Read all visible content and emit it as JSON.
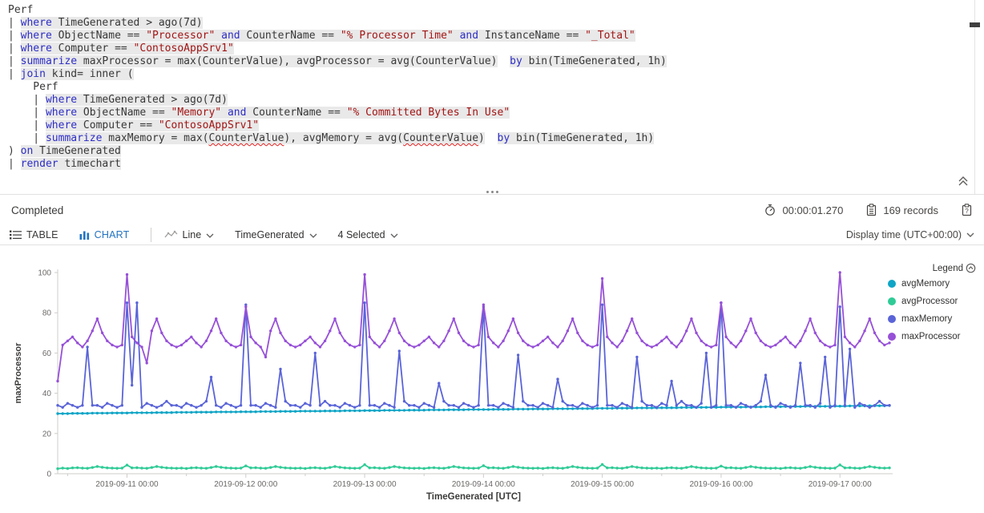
{
  "query": {
    "lines": [
      [
        {
          "t": "Perf",
          "c": "p"
        }
      ],
      [
        {
          "t": "| ",
          "c": "p"
        },
        {
          "t": "where",
          "c": "k",
          "h": 1
        },
        {
          "t": " TimeGenerated > ago(7d)",
          "c": "p",
          "h": 1
        }
      ],
      [
        {
          "t": "| ",
          "c": "p"
        },
        {
          "t": "where",
          "c": "k",
          "h": 1
        },
        {
          "t": " ObjectName == ",
          "c": "p",
          "h": 1
        },
        {
          "t": "\"Processor\"",
          "c": "s",
          "h": 1
        },
        {
          "t": " ",
          "c": "p",
          "h": 1
        },
        {
          "t": "and",
          "c": "k",
          "h": 1
        },
        {
          "t": " CounterName == ",
          "c": "p",
          "h": 1
        },
        {
          "t": "\"% Processor Time\"",
          "c": "s",
          "h": 1
        },
        {
          "t": " ",
          "c": "p",
          "h": 1
        },
        {
          "t": "and",
          "c": "k",
          "h": 1
        },
        {
          "t": " InstanceName == ",
          "c": "p",
          "h": 1
        },
        {
          "t": "\"_Total\"",
          "c": "s",
          "h": 1
        }
      ],
      [
        {
          "t": "| ",
          "c": "p"
        },
        {
          "t": "where",
          "c": "k",
          "h": 1
        },
        {
          "t": " Computer == ",
          "c": "p",
          "h": 1
        },
        {
          "t": "\"ContosoAppSrv1\"",
          "c": "s",
          "h": 1
        }
      ],
      [
        {
          "t": "| ",
          "c": "p"
        },
        {
          "t": "summarize",
          "c": "k",
          "h": 1
        },
        {
          "t": " maxProcessor = max(CounterValue), avgProcessor = avg(CounterValue)",
          "c": "p",
          "h": 1
        },
        {
          "t": "  ",
          "c": "p"
        },
        {
          "t": "by",
          "c": "k",
          "h": 1
        },
        {
          "t": " bin(TimeGenerated, 1h)",
          "c": "p",
          "h": 1
        }
      ],
      [
        {
          "t": "| ",
          "c": "p"
        },
        {
          "t": "join",
          "c": "k",
          "h": 1
        },
        {
          "t": " kind= inner (",
          "c": "p",
          "h": 1
        }
      ],
      [
        {
          "t": "    Perf",
          "c": "p"
        }
      ],
      [
        {
          "t": "    | ",
          "c": "p"
        },
        {
          "t": "where",
          "c": "k",
          "h": 1
        },
        {
          "t": " TimeGenerated > ago(7d)",
          "c": "p",
          "h": 1
        }
      ],
      [
        {
          "t": "    | ",
          "c": "p"
        },
        {
          "t": "where",
          "c": "k",
          "h": 1
        },
        {
          "t": " ObjectName == ",
          "c": "p",
          "h": 1
        },
        {
          "t": "\"Memory\"",
          "c": "s",
          "h": 1
        },
        {
          "t": " ",
          "c": "p",
          "h": 1
        },
        {
          "t": "and",
          "c": "k",
          "h": 1
        },
        {
          "t": " CounterName == ",
          "c": "p",
          "h": 1
        },
        {
          "t": "\"% Committed Bytes In Use\"",
          "c": "s",
          "h": 1
        }
      ],
      [
        {
          "t": "    | ",
          "c": "p"
        },
        {
          "t": "where",
          "c": "k",
          "h": 1
        },
        {
          "t": " Computer == ",
          "c": "p",
          "h": 1
        },
        {
          "t": "\"ContosoAppSrv1\"",
          "c": "s",
          "h": 1
        }
      ],
      [
        {
          "t": "    | ",
          "c": "p"
        },
        {
          "t": "summarize",
          "c": "k",
          "h": 1
        },
        {
          "t": " maxMemory = max(",
          "c": "p",
          "h": 1
        },
        {
          "t": "CounterValue",
          "c": "p",
          "h": 1,
          "u": 1
        },
        {
          "t": "), avgMemory = avg(",
          "c": "p",
          "h": 1
        },
        {
          "t": "CounterValue",
          "c": "p",
          "h": 1,
          "u": 1
        },
        {
          "t": ")",
          "c": "p",
          "h": 1
        },
        {
          "t": "  ",
          "c": "p"
        },
        {
          "t": "by",
          "c": "k",
          "h": 1
        },
        {
          "t": " bin(TimeGenerated, 1h)",
          "c": "p",
          "h": 1
        }
      ],
      [
        {
          "t": ") ",
          "c": "p"
        },
        {
          "t": "on",
          "c": "k",
          "h": 1
        },
        {
          "t": " TimeGenerated",
          "c": "p",
          "h": 1
        }
      ],
      [
        {
          "t": "| ",
          "c": "p"
        },
        {
          "t": "render",
          "c": "k",
          "h": 1
        },
        {
          "t": " timechart",
          "c": "p",
          "h": 1
        }
      ]
    ]
  },
  "status": {
    "state": "Completed",
    "duration": "00:00:01.270",
    "records": "169 records"
  },
  "toolbar": {
    "table_tab": "TABLE",
    "chart_tab": "CHART",
    "chart_type_label": "Line",
    "x_axis_label": "TimeGenerated",
    "columns_label": "4 Selected",
    "display_time_label": "Display time (UTC+00:00)"
  },
  "colors": {
    "accent_blue": "#2173c2",
    "keyword_blue": "#2d2dc6",
    "string_red": "#a31515",
    "code_highlight": "#e9e9e9",
    "axis_text": "#6b6967",
    "series_avgMemory": "#0ea5c6",
    "series_avgProcessor": "#2fcb96",
    "series_maxMemory": "#5a64d8",
    "series_maxProcessor": "#9750d8"
  },
  "chart_data": {
    "type": "line",
    "x_start": "2019-09-10 10:00",
    "x_step_hours": 1,
    "point_count": 169,
    "x_tick_hours": [
      14,
      38,
      62,
      86,
      110,
      134,
      158
    ],
    "x_tick_labels": [
      "2019-09-11 00:00",
      "2019-09-12 00:00",
      "2019-09-13 00:00",
      "2019-09-14 00:00",
      "2019-09-15 00:00",
      "2019-09-16 00:00",
      "2019-09-17 00:00"
    ],
    "xlabel": "TimeGenerated [UTC]",
    "ylabel": "maxProcessor",
    "ylim": [
      0,
      100
    ],
    "y_ticks": [
      0,
      20,
      40,
      60,
      80,
      100
    ],
    "grid": false,
    "legend_title": "Legend",
    "legend_position": "right",
    "series": [
      {
        "name": "avgMemory",
        "color": "#0ea5c6",
        "values": [
          29.9,
          29.9,
          29.9,
          30.0,
          30.0,
          30.0,
          30.0,
          30.1,
          30.1,
          30.1,
          30.1,
          30.2,
          30.2,
          30.2,
          30.2,
          30.3,
          30.3,
          30.3,
          30.3,
          30.3,
          30.4,
          30.4,
          30.4,
          30.4,
          30.5,
          30.5,
          30.5,
          30.5,
          30.6,
          30.6,
          30.6,
          30.6,
          30.7,
          30.7,
          30.7,
          30.7,
          30.7,
          30.8,
          30.8,
          30.8,
          30.8,
          30.9,
          30.9,
          30.9,
          30.9,
          31.0,
          31.0,
          31.0,
          31.0,
          31.1,
          31.1,
          31.1,
          31.1,
          31.1,
          31.2,
          31.2,
          31.2,
          31.2,
          31.3,
          31.3,
          31.3,
          31.3,
          31.4,
          31.4,
          31.4,
          31.4,
          31.5,
          31.5,
          31.5,
          31.5,
          31.5,
          31.6,
          31.6,
          31.6,
          31.6,
          31.7,
          31.7,
          31.7,
          31.7,
          31.8,
          31.8,
          31.8,
          31.8,
          31.9,
          31.9,
          31.9,
          31.9,
          31.9,
          32.0,
          32.0,
          32.0,
          32.0,
          32.1,
          32.1,
          32.1,
          32.1,
          32.2,
          32.2,
          32.2,
          32.2,
          32.3,
          32.3,
          32.3,
          32.3,
          32.3,
          32.4,
          32.4,
          32.4,
          32.4,
          32.5,
          32.5,
          32.5,
          32.5,
          32.6,
          32.6,
          32.6,
          32.6,
          32.7,
          32.7,
          32.7,
          32.7,
          32.7,
          32.8,
          32.8,
          32.8,
          32.8,
          32.9,
          32.9,
          32.9,
          32.9,
          33.0,
          33.0,
          33.0,
          33.0,
          33.1,
          33.1,
          33.1,
          33.1,
          33.1,
          33.2,
          33.2,
          33.2,
          33.2,
          33.3,
          33.3,
          33.3,
          33.3,
          33.4,
          33.4,
          33.4,
          33.4,
          33.5,
          33.5,
          33.5,
          33.5,
          33.5,
          33.6,
          33.6,
          33.6,
          33.6,
          33.7,
          33.7,
          33.7,
          33.7,
          33.8,
          33.8,
          33.8,
          33.8,
          33.9
        ]
      },
      {
        "name": "avgProcessor",
        "color": "#2fcb96",
        "values": [
          2.5,
          2.8,
          2.6,
          2.9,
          3.0,
          2.8,
          2.7,
          3.1,
          3.6,
          3.2,
          2.9,
          2.8,
          2.7,
          2.8,
          4.3,
          2.9,
          3.0,
          2.8,
          2.7,
          3.1,
          3.6,
          3.2,
          2.9,
          2.8,
          2.7,
          2.8,
          2.6,
          2.9,
          3.0,
          2.8,
          2.7,
          3.1,
          3.6,
          3.2,
          2.9,
          2.8,
          2.7,
          2.8,
          3.9,
          2.9,
          3.0,
          2.8,
          2.7,
          3.1,
          3.6,
          3.2,
          2.9,
          2.8,
          2.7,
          2.8,
          2.6,
          2.9,
          3.0,
          2.8,
          2.7,
          3.1,
          3.6,
          3.2,
          2.9,
          2.8,
          2.7,
          2.8,
          4.5,
          2.9,
          3.0,
          2.8,
          2.7,
          3.1,
          3.6,
          3.2,
          2.9,
          2.8,
          2.7,
          2.8,
          2.6,
          2.9,
          3.0,
          2.8,
          2.7,
          3.1,
          3.6,
          3.2,
          2.9,
          2.8,
          2.7,
          2.8,
          4.0,
          2.9,
          3.0,
          2.8,
          2.7,
          3.1,
          3.6,
          3.2,
          2.9,
          2.8,
          2.7,
          2.8,
          2.6,
          2.9,
          3.0,
          2.8,
          2.7,
          3.1,
          3.6,
          3.2,
          2.9,
          2.8,
          2.7,
          2.8,
          4.6,
          2.9,
          3.0,
          2.8,
          2.7,
          3.1,
          3.6,
          3.2,
          2.9,
          2.8,
          2.7,
          2.8,
          2.6,
          2.9,
          3.0,
          2.8,
          2.7,
          3.1,
          3.6,
          3.2,
          2.9,
          2.8,
          2.7,
          2.8,
          3.8,
          2.9,
          3.0,
          2.8,
          2.7,
          3.1,
          3.6,
          3.2,
          2.9,
          2.8,
          2.7,
          2.8,
          2.6,
          2.9,
          3.0,
          2.8,
          2.7,
          3.1,
          3.6,
          3.2,
          2.9,
          2.8,
          2.7,
          2.8,
          4.4,
          2.9,
          3.0,
          2.8,
          2.7,
          3.1,
          3.6,
          3.2,
          2.9,
          2.8,
          2.9
        ]
      },
      {
        "name": "maxMemory",
        "color": "#5a64d8",
        "values": [
          34,
          33,
          35,
          34,
          33,
          34,
          63,
          34,
          34,
          33,
          35,
          34,
          33,
          34,
          85,
          44,
          85,
          33,
          35,
          34,
          33,
          34,
          36,
          34,
          34,
          33,
          35,
          34,
          33,
          34,
          36,
          48,
          34,
          33,
          35,
          34,
          33,
          34,
          84,
          34,
          34,
          33,
          35,
          34,
          33,
          52,
          36,
          34,
          34,
          33,
          35,
          34,
          60,
          34,
          36,
          34,
          34,
          33,
          35,
          34,
          33,
          34,
          85,
          34,
          34,
          33,
          35,
          34,
          33,
          61,
          36,
          34,
          34,
          33,
          35,
          34,
          33,
          45,
          36,
          34,
          34,
          33,
          35,
          34,
          33,
          34,
          83,
          34,
          34,
          33,
          35,
          34,
          33,
          59,
          36,
          34,
          34,
          33,
          35,
          34,
          33,
          47,
          36,
          34,
          34,
          33,
          35,
          34,
          33,
          34,
          84,
          34,
          34,
          33,
          35,
          34,
          33,
          58,
          36,
          34,
          34,
          33,
          35,
          34,
          46,
          34,
          36,
          34,
          34,
          33,
          35,
          60,
          33,
          34,
          85,
          34,
          34,
          33,
          35,
          34,
          33,
          34,
          36,
          49,
          34,
          33,
          35,
          34,
          33,
          34,
          55,
          34,
          34,
          33,
          35,
          58,
          33,
          34,
          83,
          34,
          62,
          33,
          35,
          34,
          33,
          34,
          36,
          34,
          34
        ]
      },
      {
        "name": "maxProcessor",
        "color": "#9750d8",
        "values": [
          46,
          64,
          66,
          68,
          65,
          63,
          66,
          71,
          77,
          70,
          66,
          64,
          63,
          64,
          99,
          68,
          65,
          63,
          55,
          71,
          77,
          70,
          66,
          64,
          63,
          64,
          66,
          68,
          65,
          63,
          66,
          71,
          77,
          70,
          66,
          64,
          63,
          64,
          83,
          68,
          65,
          63,
          58,
          71,
          77,
          70,
          66,
          64,
          63,
          64,
          66,
          68,
          65,
          63,
          66,
          71,
          77,
          70,
          66,
          64,
          63,
          64,
          99,
          68,
          65,
          63,
          66,
          71,
          77,
          70,
          66,
          64,
          63,
          64,
          66,
          68,
          65,
          63,
          66,
          71,
          77,
          70,
          66,
          64,
          63,
          64,
          84,
          68,
          65,
          63,
          66,
          71,
          77,
          70,
          66,
          64,
          63,
          64,
          66,
          68,
          65,
          63,
          66,
          71,
          77,
          70,
          66,
          64,
          63,
          64,
          97,
          68,
          65,
          63,
          66,
          71,
          77,
          70,
          66,
          64,
          63,
          64,
          66,
          68,
          65,
          63,
          66,
          71,
          77,
          70,
          66,
          64,
          63,
          64,
          85,
          68,
          65,
          63,
          66,
          71,
          77,
          70,
          66,
          64,
          63,
          64,
          66,
          68,
          65,
          63,
          66,
          71,
          77,
          70,
          66,
          64,
          63,
          64,
          100,
          68,
          65,
          63,
          66,
          71,
          77,
          70,
          66,
          64,
          65
        ]
      }
    ]
  }
}
